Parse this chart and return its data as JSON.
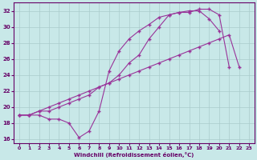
{
  "xlabel": "Windchill (Refroidissement éolien,°C)",
  "xlim": [
    -0.5,
    23.5
  ],
  "ylim": [
    15.5,
    33.0
  ],
  "xticks": [
    0,
    1,
    2,
    3,
    4,
    5,
    6,
    7,
    8,
    9,
    10,
    11,
    12,
    13,
    14,
    15,
    16,
    17,
    18,
    19,
    20,
    21,
    22,
    23
  ],
  "yticks": [
    16,
    18,
    20,
    22,
    24,
    26,
    28,
    30,
    32
  ],
  "bg_color": "#c8e8e8",
  "grid_color": "#aacccc",
  "line_color": "#993399",
  "line1_x": [
    0,
    1,
    2,
    3,
    4,
    5,
    6,
    7,
    8,
    9,
    10,
    11,
    12,
    13,
    14,
    15,
    16,
    17,
    18,
    19,
    20,
    21,
    22,
    23
  ],
  "line1_y": [
    19.0,
    19.0,
    19.0,
    18.5,
    18.5,
    18.0,
    16.2,
    17.0,
    19.5,
    24.5,
    27.0,
    28.5,
    29.5,
    30.3,
    31.2,
    31.5,
    31.8,
    32.0,
    32.0,
    31.0,
    29.5,
    null,
    null,
    null
  ],
  "line2_x": [
    0,
    1,
    2,
    3,
    4,
    5,
    6,
    7,
    8,
    9,
    10,
    11,
    12,
    13,
    14,
    15,
    16,
    17,
    18,
    19,
    20,
    21,
    22,
    23
  ],
  "line2_y": [
    19.0,
    19.0,
    19.5,
    19.5,
    20.0,
    20.5,
    21.0,
    21.5,
    22.5,
    23.0,
    24.0,
    25.5,
    26.5,
    28.5,
    30.0,
    31.5,
    31.8,
    31.8,
    32.2,
    32.2,
    31.5,
    25.0,
    null,
    null
  ],
  "line3_x": [
    0,
    1,
    2,
    3,
    4,
    5,
    6,
    7,
    8,
    9,
    10,
    11,
    12,
    13,
    14,
    15,
    16,
    17,
    18,
    19,
    20,
    21,
    22,
    23
  ],
  "line3_y": [
    19.0,
    19.0,
    19.5,
    20.0,
    20.5,
    21.0,
    21.5,
    22.0,
    22.5,
    23.0,
    23.5,
    24.0,
    24.5,
    25.0,
    25.5,
    26.0,
    26.5,
    27.0,
    27.5,
    28.0,
    28.5,
    29.0,
    25.0,
    null
  ]
}
